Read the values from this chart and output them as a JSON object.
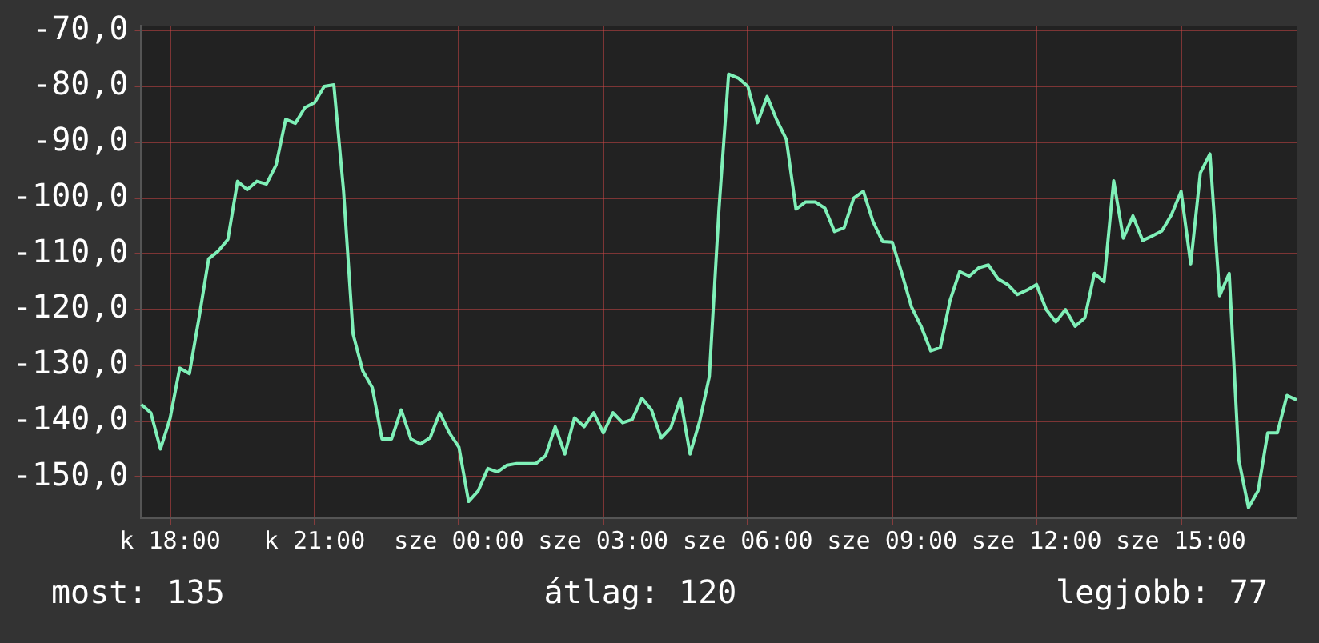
{
  "chart_data": {
    "type": "line",
    "ylim": [
      -157.4,
      -69.1
    ],
    "categories": [
      null,
      null,
      null,
      "k 18:00",
      null,
      null,
      null,
      null,
      null,
      null,
      null,
      null,
      null,
      null,
      null,
      null,
      null,
      null,
      "k 21:00",
      null,
      null,
      null,
      null,
      null,
      null,
      null,
      null,
      null,
      null,
      null,
      null,
      null,
      null,
      "sze 00:00",
      null,
      null,
      null,
      null,
      null,
      null,
      null,
      null,
      null,
      null,
      null,
      null,
      null,
      null,
      "sze 03:00",
      null,
      null,
      null,
      null,
      null,
      null,
      null,
      null,
      null,
      null,
      null,
      null,
      null,
      null,
      "sze 06:00",
      null,
      null,
      null,
      null,
      null,
      null,
      null,
      null,
      null,
      null,
      null,
      null,
      null,
      null,
      "sze 09:00",
      null,
      null,
      null,
      null,
      null,
      null,
      null,
      null,
      null,
      null,
      null,
      null,
      null,
      null,
      "sze 12:00",
      null,
      null,
      null,
      null,
      null,
      null,
      null,
      null,
      null,
      null,
      null,
      null,
      null,
      null,
      "sze 15:00",
      null,
      null,
      null,
      null,
      null,
      null,
      null,
      null,
      null,
      null,
      null,
      null
    ],
    "yticks": [
      {
        "value": -150,
        "label": "-150,0"
      },
      {
        "value": -140,
        "label": "-140,0"
      },
      {
        "value": -130,
        "label": "-130,0"
      },
      {
        "value": -120,
        "label": "-120,0"
      },
      {
        "value": -110,
        "label": "-110,0"
      },
      {
        "value": -100,
        "label": "-100,0"
      },
      {
        "value": -90,
        "label": "-90,0"
      },
      {
        "value": -80,
        "label": "-80,0"
      },
      {
        "value": -70,
        "label": "-70,0"
      }
    ],
    "grid": true,
    "legend": false,
    "marker": "none",
    "line_style": "solid",
    "annotations": [
      "most: 135",
      "átlag: 120",
      "legjobb: 77"
    ],
    "series": [
      {
        "color": "#7ff0b8",
        "values": [
          -137,
          -138.5,
          -145,
          -139.5,
          -130.5,
          -131.5,
          -121.5,
          -110.9,
          -109.5,
          -107.4,
          -97,
          -98.5,
          -97,
          -97.5,
          -94.1,
          -85.9,
          -86.6,
          -83.8,
          -82.9,
          -80,
          -79.7,
          -98.5,
          -124.4,
          -131,
          -134,
          -143.2,
          -143.2,
          -138,
          -143.2,
          -144.1,
          -143,
          -138.5,
          -142.1,
          -144.7,
          -154.4,
          -152.5,
          -148.5,
          -149.1,
          -147.9,
          -147.6,
          -147.6,
          -147.6,
          -146.2,
          -141,
          -145.9,
          -139.4,
          -141,
          -138.5,
          -142.1,
          -138.5,
          -140.3,
          -139.7,
          -135.9,
          -138,
          -143,
          -141.2,
          -136,
          -145.9,
          -140,
          -132,
          -102,
          -77.8,
          -78.5,
          -80,
          -86.5,
          -81.8,
          -86,
          -89.5,
          -102,
          -100.7,
          -100.7,
          -101.8,
          -106,
          -105.3,
          -100,
          -98.8,
          -104.2,
          -107.8,
          -107.9,
          -113.5,
          -119.5,
          -123,
          -127.4,
          -126.8,
          -118.4,
          -113.2,
          -114,
          -112.5,
          -112,
          -114.5,
          -115.5,
          -117.3,
          -116.5,
          -115.5,
          -120,
          -122.2,
          -120,
          -123,
          -121.5,
          -113.5,
          -115,
          -96.9,
          -107.2,
          -103.2,
          -107.6,
          -106.8,
          -105.9,
          -103,
          -98.8,
          -111.8,
          -95.5,
          -92.1,
          -117.5,
          -113.5,
          -147,
          -155.5,
          -152.5,
          -142.1,
          -142.1,
          -135.4,
          -136.2
        ]
      }
    ]
  }
}
